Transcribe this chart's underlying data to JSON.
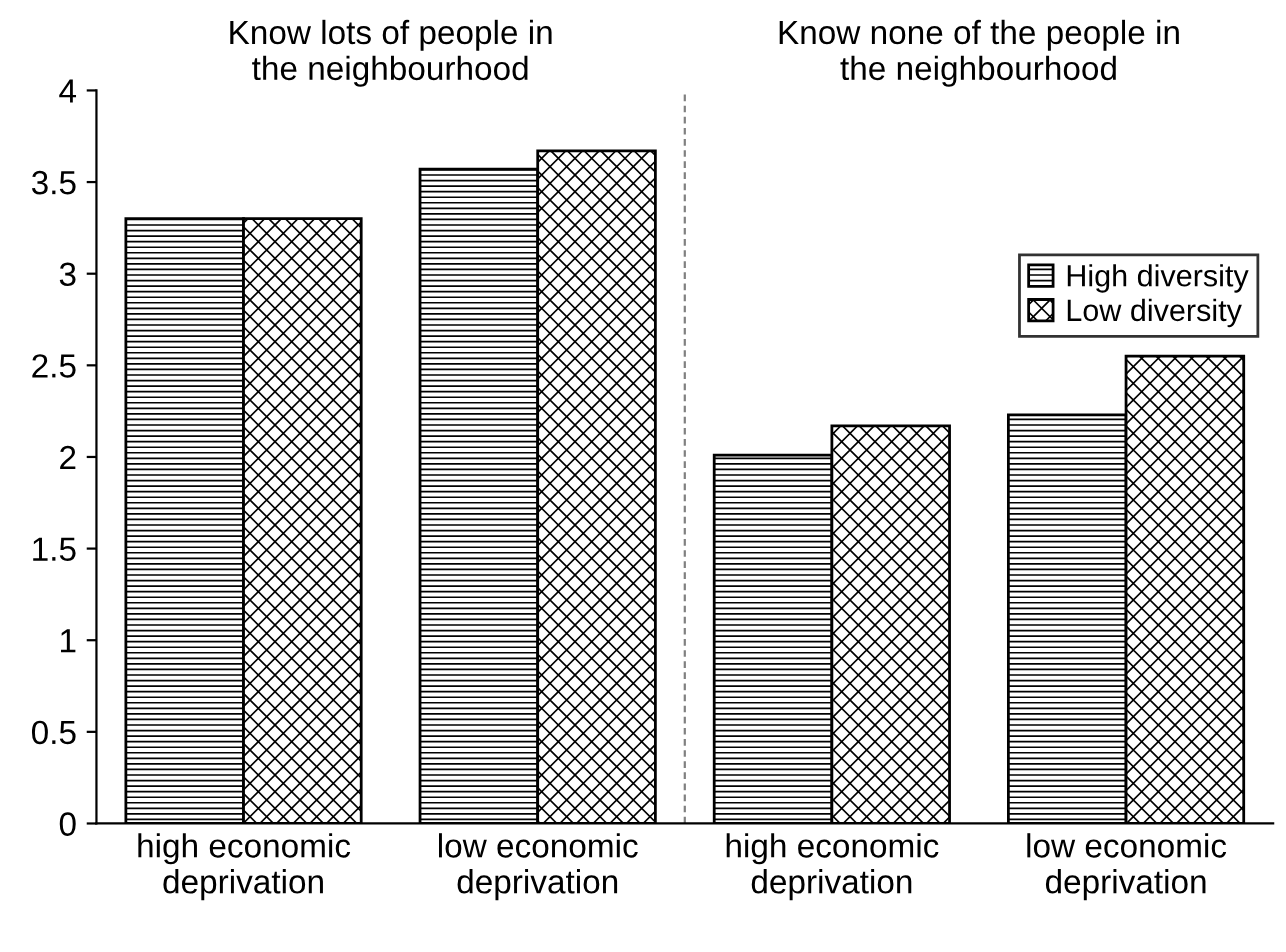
{
  "chart_data": {
    "type": "bar",
    "categories": [
      "high economic\ndeprivation",
      "low economic\ndeprivation",
      "high economic\ndeprivation",
      "low economic\ndeprivation"
    ],
    "series": [
      {
        "name": "High diversity",
        "color": "#000000",
        "values": [
          3.3,
          3.57,
          2.01,
          2.23
        ]
      },
      {
        "name": "Low diversity",
        "color": "#000000",
        "values": [
          3.3,
          3.67,
          2.17,
          2.55
        ]
      }
    ],
    "annotations": [
      "Know lots of people in\nthe neighbourhood",
      "Know none of the people in\nthe neighbourhood"
    ],
    "ylim": [
      0,
      4
    ],
    "yticks": [
      0,
      0.5,
      1,
      1.5,
      2,
      2.5,
      3,
      3.5,
      4
    ],
    "grid": false,
    "legend": "right"
  }
}
